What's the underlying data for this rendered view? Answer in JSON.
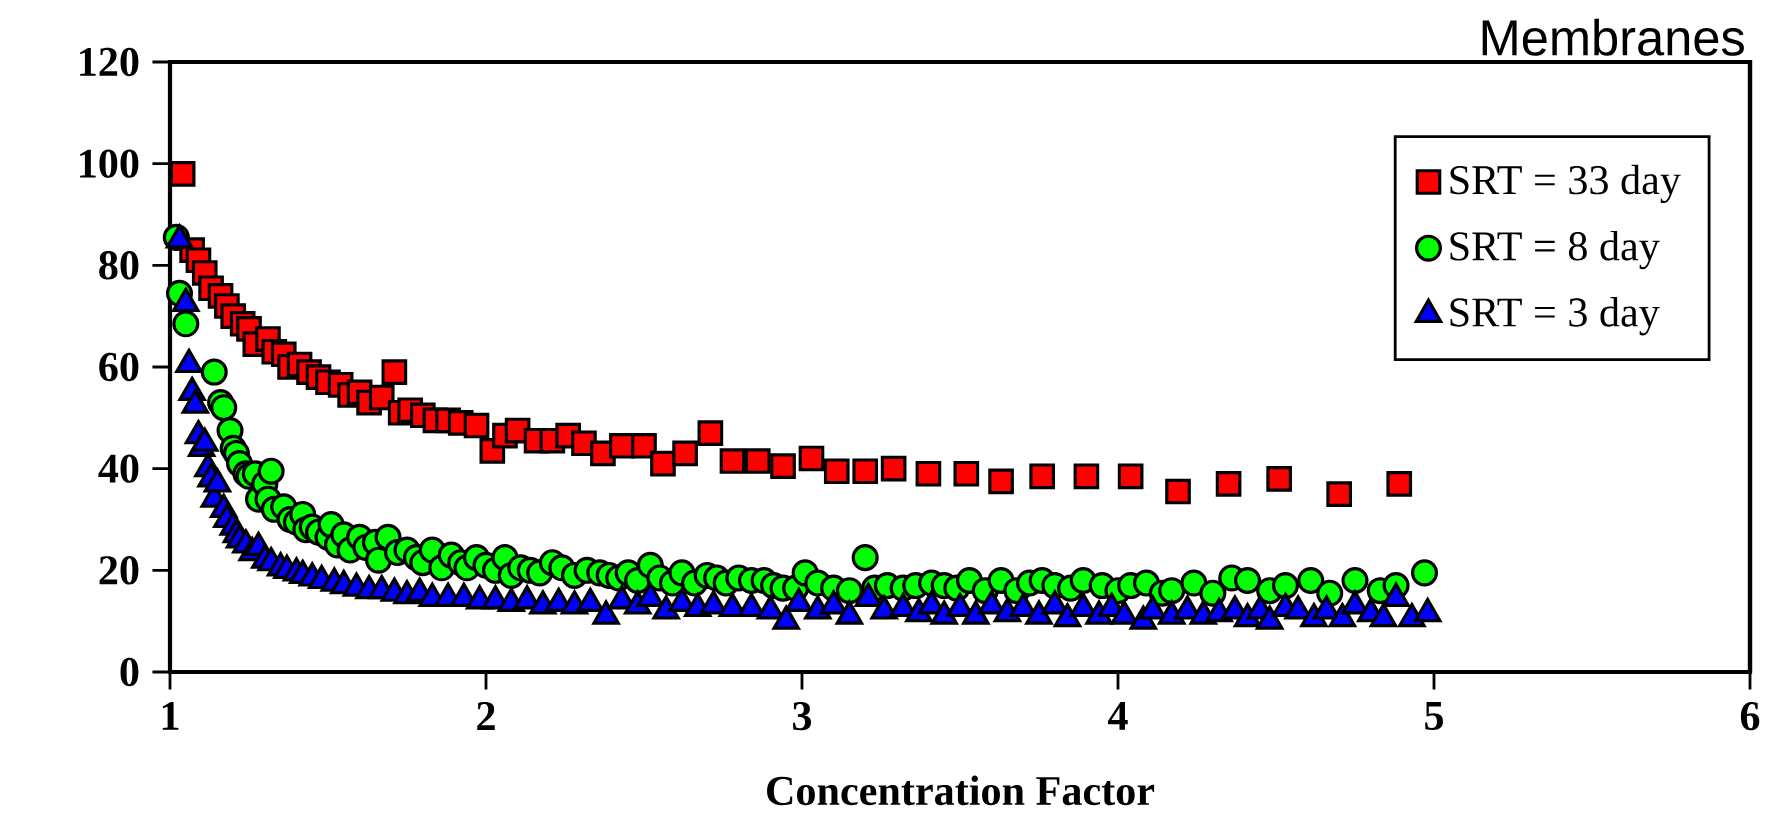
{
  "chart_data": {
    "type": "scatter",
    "title": "Membranes",
    "xlabel": "Concentration Factor",
    "xlim": [
      1,
      6
    ],
    "xticks": [
      1,
      2,
      3,
      4,
      5,
      6
    ],
    "ylim": [
      0,
      120
    ],
    "yticks": [
      0,
      20,
      40,
      60,
      80,
      100,
      120
    ],
    "grid": false,
    "legend": "top right",
    "series": [
      {
        "name": "SRT = 33 day",
        "color": "#ff0000",
        "marker": "square",
        "x": [
          1.04,
          1.07,
          1.09,
          1.11,
          1.13,
          1.16,
          1.18,
          1.2,
          1.23,
          1.25,
          1.27,
          1.31,
          1.33,
          1.36,
          1.38,
          1.41,
          1.44,
          1.47,
          1.5,
          1.54,
          1.57,
          1.6,
          1.63,
          1.67,
          1.71,
          1.73,
          1.76,
          1.8,
          1.84,
          1.88,
          1.92,
          1.97,
          2.02,
          2.06,
          2.1,
          2.16,
          2.21,
          2.26,
          2.31,
          2.37,
          2.43,
          2.5,
          2.56,
          2.63,
          2.71,
          2.78,
          2.86,
          2.94,
          3.03,
          3.11,
          3.2,
          3.29,
          3.4,
          3.52,
          3.63,
          3.76,
          3.9,
          4.04,
          4.19,
          4.35,
          4.51,
          4.7,
          4.89
        ],
        "values": [
          98,
          83,
          81,
          78.5,
          75.5,
          74,
          72,
          70,
          68.5,
          67.5,
          64.5,
          65.5,
          63,
          62.5,
          60,
          60.5,
          59,
          58,
          57,
          56.5,
          54.5,
          55,
          53,
          54,
          59,
          51,
          51.5,
          50.5,
          49.5,
          49.5,
          49,
          48.5,
          43.5,
          46.5,
          47.5,
          45.5,
          45.5,
          46.5,
          45,
          43,
          44.5,
          44.5,
          41,
          43,
          47,
          41.5,
          41.5,
          40.5,
          42,
          39.5,
          39.5,
          40,
          39,
          39,
          37.5,
          38.5,
          38.5,
          38.5,
          35.5,
          37,
          38,
          35,
          37
        ]
      },
      {
        "name": "SRT = 8 day",
        "color": "#00ff00",
        "marker": "circle",
        "x": [
          1.02,
          1.03,
          1.05,
          1.14,
          1.16,
          1.17,
          1.19,
          1.2,
          1.21,
          1.22,
          1.24,
          1.25,
          1.27,
          1.28,
          1.3,
          1.32,
          1.31,
          1.33,
          1.36,
          1.38,
          1.4,
          1.42,
          1.43,
          1.45,
          1.47,
          1.5,
          1.51,
          1.53,
          1.55,
          1.57,
          1.6,
          1.62,
          1.65,
          1.66,
          1.69,
          1.72,
          1.75,
          1.78,
          1.8,
          1.83,
          1.86,
          1.89,
          1.92,
          1.94,
          1.97,
          2.0,
          2.03,
          2.06,
          2.08,
          2.11,
          2.14,
          2.17,
          2.21,
          2.24,
          2.28,
          2.32,
          2.36,
          2.39,
          2.42,
          2.45,
          2.48,
          2.52,
          2.55,
          2.59,
          2.62,
          2.66,
          2.7,
          2.73,
          2.76,
          2.8,
          2.84,
          2.88,
          2.91,
          2.94,
          2.98,
          3.01,
          3.05,
          3.1,
          3.15,
          3.2,
          3.23,
          3.27,
          3.32,
          3.36,
          3.41,
          3.45,
          3.49,
          3.53,
          3.58,
          3.63,
          3.68,
          3.72,
          3.76,
          3.8,
          3.85,
          3.89,
          3.95,
          4.0,
          4.04,
          4.09,
          4.14,
          4.17,
          4.24,
          4.3,
          4.36,
          4.41,
          4.48,
          4.53,
          4.61,
          4.67,
          4.75,
          4.83,
          4.88,
          4.97
        ],
        "values": [
          85.5,
          74.5,
          68.5,
          59,
          53,
          52,
          47.5,
          44,
          43,
          41,
          39,
          38.5,
          39,
          34,
          37,
          39.5,
          34,
          32,
          32.5,
          30,
          29.5,
          31,
          28,
          28.5,
          27.5,
          26.5,
          29,
          25,
          27,
          24,
          26.5,
          24.5,
          25.5,
          22,
          26.5,
          23.5,
          24,
          22.5,
          21.5,
          24,
          20.5,
          23,
          21.5,
          20.5,
          22.5,
          21,
          20,
          22.5,
          19,
          20.5,
          20,
          19.5,
          21.5,
          20.5,
          19,
          20,
          19.5,
          19,
          18.5,
          19.5,
          18,
          21,
          18.5,
          17.5,
          19.5,
          17.5,
          19,
          18.5,
          17.5,
          18.5,
          18,
          18,
          17,
          16.5,
          16.5,
          19.5,
          17.5,
          16.5,
          16,
          22.5,
          16.5,
          17,
          16.5,
          17,
          17.5,
          17,
          16.5,
          18,
          16,
          18,
          16,
          17.5,
          18,
          17,
          16.5,
          18,
          17,
          16,
          17,
          17.5,
          15.5,
          16,
          17.5,
          15.5,
          18.5,
          18,
          16,
          17,
          18,
          15.5,
          18,
          16,
          17,
          19.5
        ]
      },
      {
        "name": "SRT = 3 day",
        "color": "#0000ff",
        "marker": "triangle",
        "x": [
          1.03,
          1.05,
          1.06,
          1.07,
          1.08,
          1.09,
          1.1,
          1.11,
          1.12,
          1.13,
          1.14,
          1.15,
          1.17,
          1.18,
          1.2,
          1.21,
          1.22,
          1.24,
          1.26,
          1.28,
          1.3,
          1.32,
          1.35,
          1.37,
          1.4,
          1.42,
          1.45,
          1.48,
          1.52,
          1.55,
          1.59,
          1.63,
          1.67,
          1.71,
          1.75,
          1.79,
          1.83,
          1.88,
          1.93,
          1.98,
          2.03,
          2.08,
          2.13,
          2.18,
          2.23,
          2.28,
          2.33,
          2.38,
          2.43,
          2.48,
          2.52,
          2.57,
          2.62,
          2.67,
          2.72,
          2.78,
          2.84,
          2.9,
          2.95,
          2.99,
          3.05,
          3.1,
          3.15,
          3.21,
          3.26,
          3.32,
          3.37,
          3.41,
          3.45,
          3.5,
          3.55,
          3.6,
          3.65,
          3.7,
          3.75,
          3.8,
          3.84,
          3.89,
          3.94,
          3.98,
          4.02,
          4.08,
          4.11,
          4.17,
          4.22,
          4.27,
          4.32,
          4.37,
          4.41,
          4.45,
          4.48,
          4.53,
          4.57,
          4.62,
          4.66,
          4.71,
          4.75,
          4.8,
          4.84,
          4.88,
          4.93,
          4.98
        ],
        "values": [
          85,
          72.5,
          60.5,
          55,
          52.5,
          46.5,
          44,
          45,
          40,
          38,
          34,
          37,
          32,
          30,
          28.5,
          27,
          26,
          25,
          23.5,
          24.5,
          22,
          21.5,
          20.5,
          20,
          19.5,
          19,
          18.5,
          18,
          17.5,
          17,
          16.5,
          16,
          16,
          15.5,
          15,
          15.5,
          14.5,
          14.5,
          14.5,
          14,
          14,
          13.5,
          14,
          13,
          13.5,
          13,
          13.5,
          11,
          14,
          13,
          14.5,
          12,
          13.5,
          12.5,
          13,
          12.5,
          12.5,
          12,
          10,
          13.5,
          12,
          13,
          11,
          14.5,
          12,
          12.5,
          11.5,
          13,
          11,
          12.5,
          11,
          13,
          11.5,
          12.5,
          11,
          13,
          10.5,
          12.5,
          11,
          12.5,
          11,
          10,
          12,
          11,
          12,
          11,
          11.5,
          12,
          10.5,
          12,
          10,
          12.5,
          12,
          10.5,
          12,
          10.5,
          13,
          11.5,
          10.5,
          14.5,
          10.5,
          11.5
        ]
      }
    ]
  }
}
